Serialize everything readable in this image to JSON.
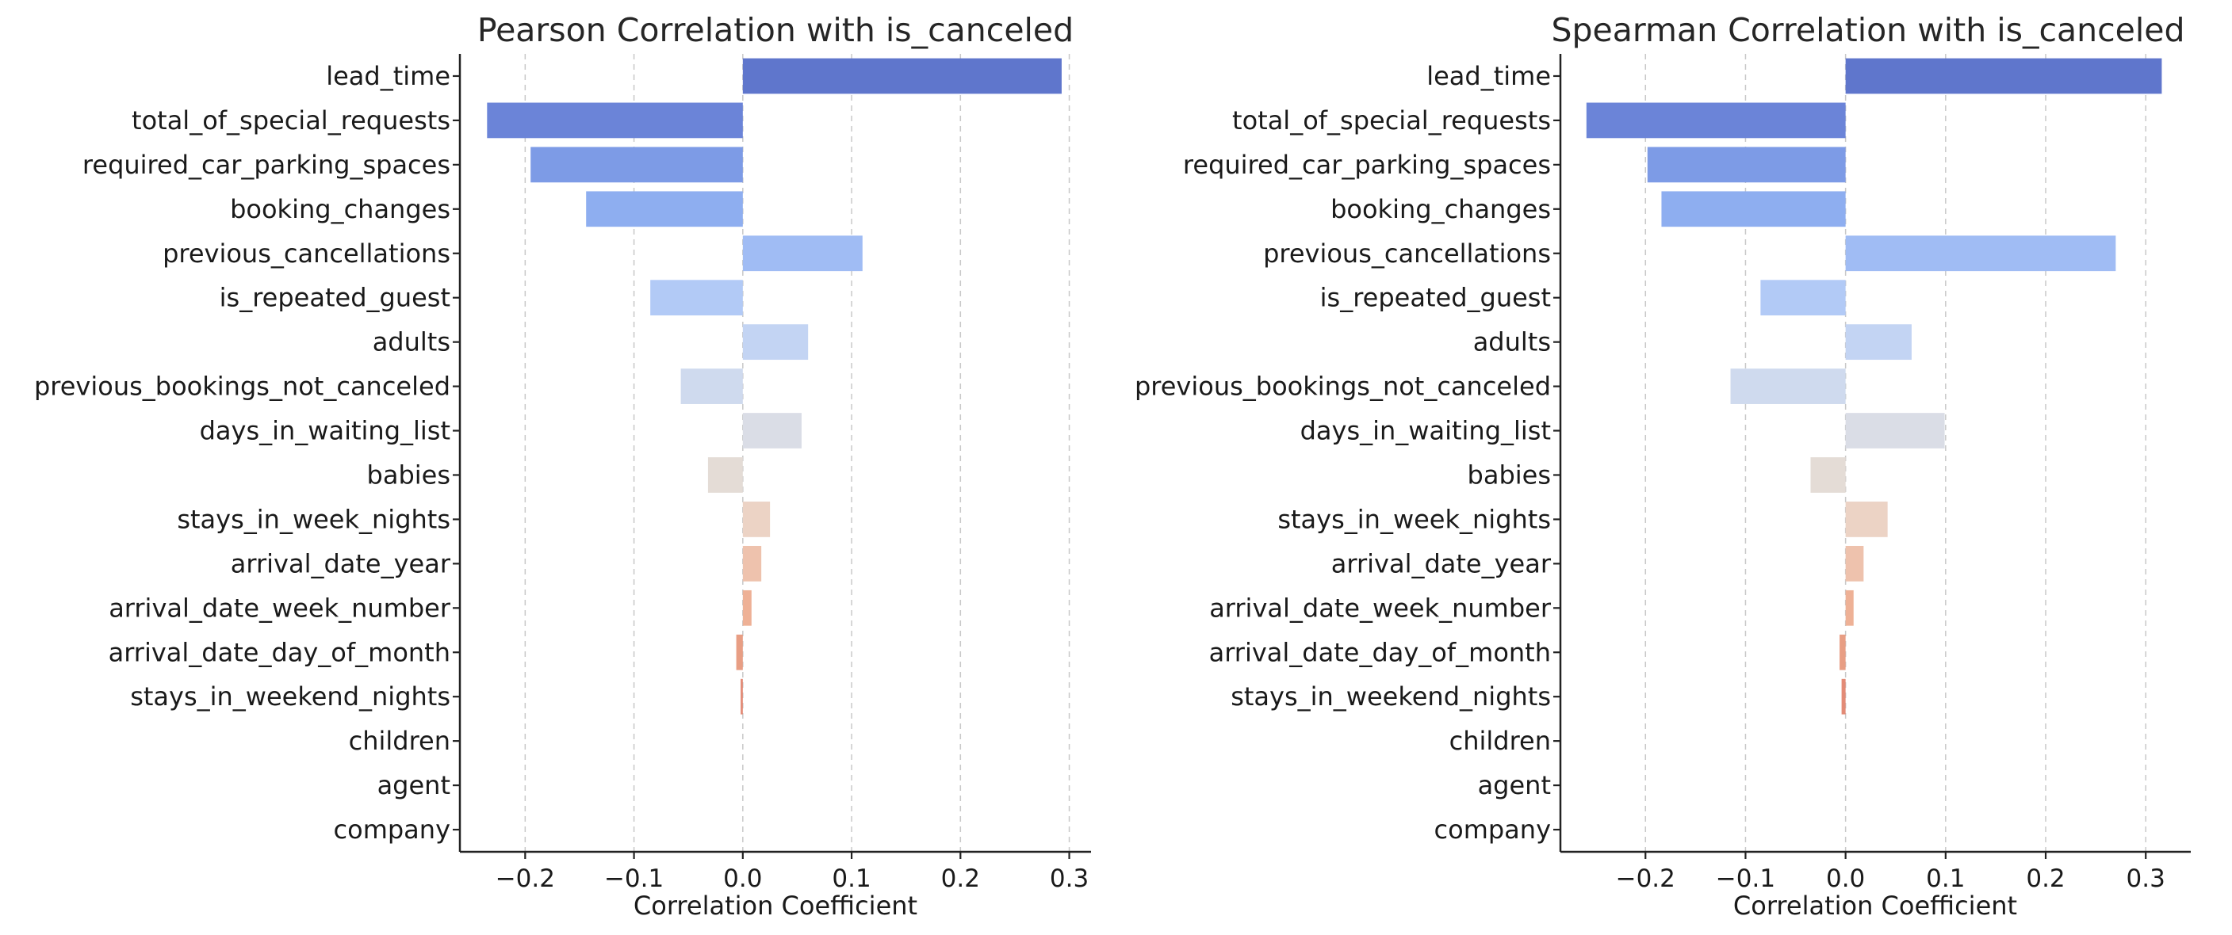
{
  "chart_data": [
    {
      "type": "bar",
      "orientation": "horizontal",
      "title": "Pearson Correlation with is_canceled",
      "xlabel": "Correlation Coefficient",
      "ylabel": "",
      "xlim": [
        -0.26,
        0.32
      ],
      "xticks": [
        -0.2,
        -0.1,
        0.0,
        0.1,
        0.2,
        0.3
      ],
      "xtick_labels": [
        "−0.2",
        "−0.1",
        "0.0",
        "0.1",
        "0.2",
        "0.3"
      ],
      "grid": "vertical dashed",
      "categories": [
        "lead_time",
        "total_of_special_requests",
        "required_car_parking_spaces",
        "booking_changes",
        "previous_cancellations",
        "is_repeated_guest",
        "adults",
        "previous_bookings_not_canceled",
        "days_in_waiting_list",
        "babies",
        "stays_in_week_nights",
        "arrival_date_year",
        "arrival_date_week_number",
        "arrival_date_day_of_month",
        "stays_in_weekend_nights",
        "children",
        "agent",
        "company"
      ],
      "values": [
        0.293,
        -0.235,
        -0.195,
        -0.144,
        0.11,
        -0.085,
        0.06,
        -0.057,
        0.054,
        -0.032,
        0.025,
        0.017,
        0.008,
        -0.006,
        -0.002,
        null,
        null,
        null
      ],
      "colors": [
        "#5f76cc",
        "#6b84d8",
        "#7d9be6",
        "#8eaef0",
        "#a0bcf4",
        "#b2caf6",
        "#c3d4f3",
        "#cfdaee",
        "#dadde6",
        "#e4dcd6",
        "#ecd3c5",
        "#eec2ad",
        "#eeb196",
        "#e89e84",
        "#e38b76",
        "#dd7a6a",
        "#d6695f",
        "#c9584f"
      ]
    },
    {
      "type": "bar",
      "orientation": "horizontal",
      "title": "Spearman Correlation with is_canceled",
      "xlabel": "Correlation Coefficient",
      "ylabel": "",
      "xlim": [
        -0.285,
        0.345
      ],
      "xticks": [
        -0.2,
        -0.1,
        0.0,
        0.1,
        0.2,
        0.3
      ],
      "xtick_labels": [
        "−0.2",
        "−0.1",
        "0.0",
        "0.1",
        "0.2",
        "0.3"
      ],
      "grid": "vertical dashed",
      "categories": [
        "lead_time",
        "total_of_special_requests",
        "required_car_parking_spaces",
        "booking_changes",
        "previous_cancellations",
        "is_repeated_guest",
        "adults",
        "previous_bookings_not_canceled",
        "days_in_waiting_list",
        "babies",
        "stays_in_week_nights",
        "arrival_date_year",
        "arrival_date_week_number",
        "arrival_date_day_of_month",
        "stays_in_weekend_nights",
        "children",
        "agent",
        "company"
      ],
      "values": [
        0.316,
        -0.259,
        -0.198,
        -0.184,
        0.27,
        -0.085,
        0.066,
        -0.115,
        0.099,
        -0.035,
        0.042,
        0.018,
        0.008,
        -0.006,
        -0.004,
        null,
        null,
        null
      ],
      "colors": [
        "#5f76cc",
        "#6b84d8",
        "#7d9be6",
        "#8eaef0",
        "#a0bcf4",
        "#b2caf6",
        "#c3d4f3",
        "#cfdaee",
        "#dadde6",
        "#e4dcd6",
        "#ecd3c5",
        "#eec2ad",
        "#eeb196",
        "#e89e84",
        "#e38b76",
        "#dd7a6a",
        "#d6695f",
        "#c9584f"
      ]
    }
  ]
}
